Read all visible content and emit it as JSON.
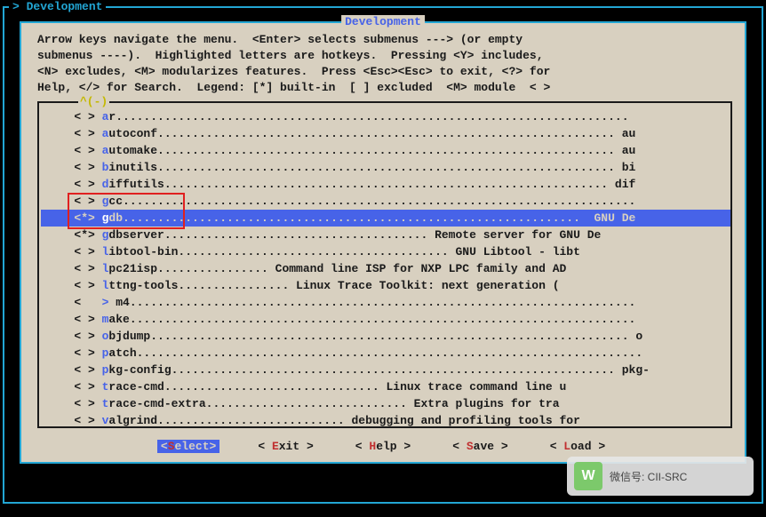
{
  "breadcrumb": "> Development ",
  "panel_title": " Development ",
  "help_lines": [
    "Arrow keys navigate the menu.  <Enter> selects submenus ---> (or empty",
    "submenus ----).  Highlighted letters are hotkeys.  Pressing <Y> includes,",
    "<N> excludes, <M> modularizes features.  Press <Esc><Esc> to exit, <?> for",
    "Help, </> for Search.  Legend: [*] built-in  [ ] excluded  <M> module  < >"
  ],
  "frame_label": "^(-)",
  "items": [
    {
      "mark": "< >",
      "hot": "a",
      "rest": "r..........................................................................",
      "sel": false
    },
    {
      "mark": "< >",
      "hot": "a",
      "rest": "utoconf.................................................................. au",
      "sel": false
    },
    {
      "mark": "< >",
      "hot": "a",
      "rest": "utomake.................................................................. au",
      "sel": false
    },
    {
      "mark": "< >",
      "hot": "b",
      "rest": "inutils.................................................................. bi",
      "sel": false
    },
    {
      "mark": "< >",
      "hot": "d",
      "rest": "iffutils................................................................ dif",
      "sel": false
    },
    {
      "mark": "< >",
      "hot": "g",
      "rest": "cc..........................................................................",
      "sel": false
    },
    {
      "mark": "<*>",
      "hot": "g",
      "rest": "db..................................................................  GNU De",
      "sel": true
    },
    {
      "mark": "<*>",
      "hot": "g",
      "rest": "dbserver...................................... Remote server for GNU De",
      "sel": false
    },
    {
      "mark": "< >",
      "hot": "l",
      "rest": "ibtool-bin....................................... GNU Libtool - libt",
      "sel": false
    },
    {
      "mark": "< >",
      "hot": "l",
      "rest": "pc21isp................ Command line ISP for NXP LPC family and AD",
      "sel": false
    },
    {
      "mark": "< >",
      "hot": "l",
      "rest": "ttng-tools................ Linux Trace Toolkit: next generation (",
      "sel": false
    },
    {
      "mark": "<  ",
      "hot": ">",
      "rest": " m4.........................................................................",
      "sel": false
    },
    {
      "mark": "< >",
      "hot": "m",
      "rest": "ake.........................................................................",
      "sel": false
    },
    {
      "mark": "< >",
      "hot": "o",
      "rest": "bjdump..................................................................... o",
      "sel": false
    },
    {
      "mark": "< >",
      "hot": "p",
      "rest": "atch.........................................................................",
      "sel": false
    },
    {
      "mark": "< >",
      "hot": "p",
      "rest": "kg-config................................................................ pkg-",
      "sel": false
    },
    {
      "mark": "< >",
      "hot": "t",
      "rest": "race-cmd............................... Linux trace command line u",
      "sel": false
    },
    {
      "mark": "< >",
      "hot": "t",
      "rest": "race-cmd-extra............................. Extra plugins for tra",
      "sel": false
    },
    {
      "mark": "< >",
      "hot": "v",
      "rest": "algrind........................... debugging and profiling tools for",
      "sel": false
    }
  ],
  "buttons": {
    "select": {
      "pre": "<",
      "hot": "S",
      "rest": "elect>"
    },
    "exit": {
      "pre": "< ",
      "hot": "E",
      "rest": "xit >"
    },
    "help": {
      "pre": "< ",
      "hot": "H",
      "rest": "elp >"
    },
    "save": {
      "pre": "< ",
      "hot": "S",
      "rest": "ave >"
    },
    "load": {
      "pre": "< ",
      "hot": "L",
      "rest": "oad >"
    }
  },
  "watermark": "微信号: CII-SRC",
  "wm_logo": "W"
}
